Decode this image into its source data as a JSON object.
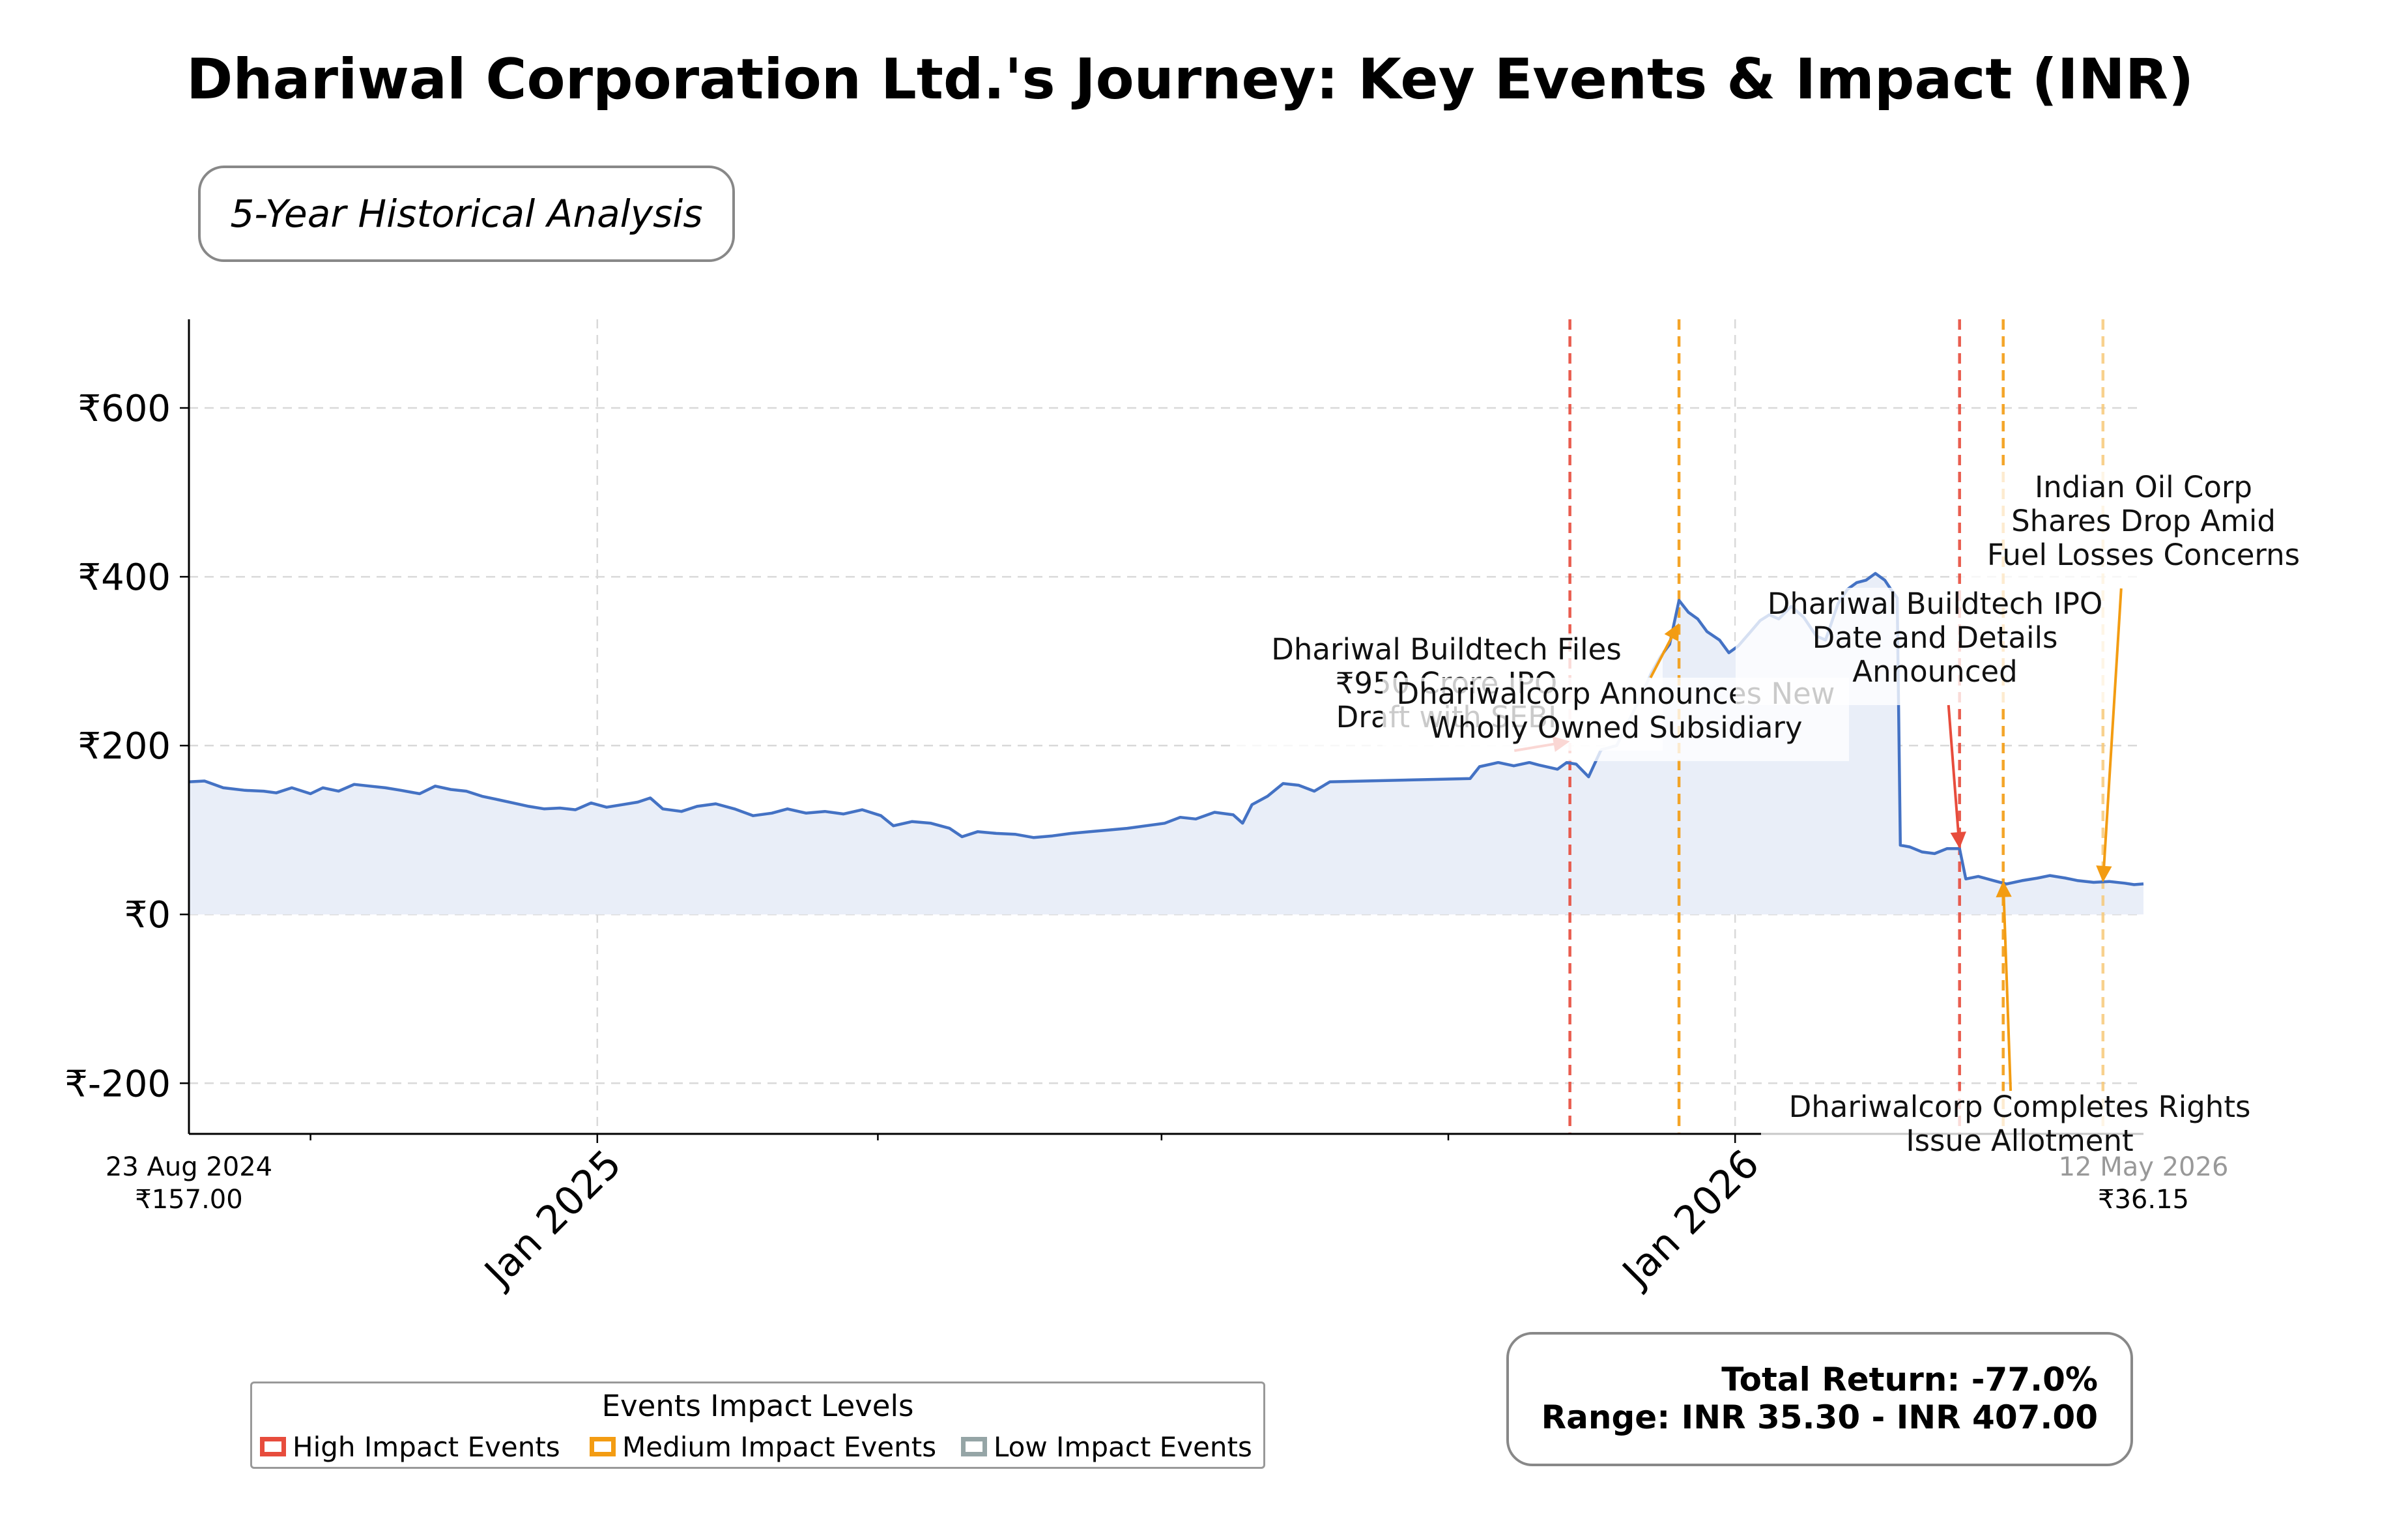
{
  "title": "Dhariwal Corporation Ltd.'s Journey: Key Events & Impact (INR)",
  "subtitle": "5-Year Historical Analysis",
  "colors": {
    "line": "#4472c4",
    "fill": "#e9eef8",
    "high": "#e74c3c",
    "medium": "#f39c12",
    "low": "#95a5a6",
    "grid": "#d9d9d9"
  },
  "legend": {
    "title": "Events Impact Levels",
    "items": [
      {
        "label": "High Impact Events",
        "color": "#e74c3c"
      },
      {
        "label": "Medium Impact Events",
        "color": "#f39c12"
      },
      {
        "label": "Low Impact Events",
        "color": "#95a5a6"
      }
    ]
  },
  "stats": {
    "total_return": "Total Return: -77.0%",
    "range": "Range: INR 35.30 - INR 407.00"
  },
  "chart_data": {
    "type": "line",
    "x_axis": "date",
    "xlim": [
      "2024-08-23",
      "2026-05-12"
    ],
    "ylim": [
      -260,
      705
    ],
    "y_ticks": [
      -200,
      0,
      200,
      400,
      600
    ],
    "y_tick_labels": [
      "₹-200",
      "₹0",
      "₹200",
      "₹400",
      "₹600"
    ],
    "x_tick_dates": [
      "2025-01-01",
      "2026-01-01"
    ],
    "x_tick_labels": [
      "Jan 2025",
      "Jan 2026"
    ],
    "x_minor_ticks": [
      "2024-10-01",
      "2025-04-01",
      "2025-07-01",
      "2025-10-01",
      "2026-04-01"
    ],
    "grid": true,
    "area_fill": true,
    "start_label": {
      "date": "23 Aug 2024",
      "price": "₹157.00"
    },
    "end_label": {
      "date": "12 May 2026",
      "price": "₹36.15"
    },
    "series": [
      {
        "points": [
          [
            "2024-08-23",
            157
          ],
          [
            "2024-08-28",
            158
          ],
          [
            "2024-09-03",
            150
          ],
          [
            "2024-09-10",
            147
          ],
          [
            "2024-09-16",
            146
          ],
          [
            "2024-09-20",
            144
          ],
          [
            "2024-09-25",
            150
          ],
          [
            "2024-10-01",
            143
          ],
          [
            "2024-10-05",
            150
          ],
          [
            "2024-10-10",
            146
          ],
          [
            "2024-10-15",
            154
          ],
          [
            "2024-10-20",
            152
          ],
          [
            "2024-10-25",
            150
          ],
          [
            "2024-10-30",
            147
          ],
          [
            "2024-11-05",
            143
          ],
          [
            "2024-11-10",
            152
          ],
          [
            "2024-11-15",
            148
          ],
          [
            "2024-11-20",
            146
          ],
          [
            "2024-11-25",
            140
          ],
          [
            "2024-11-30",
            136
          ],
          [
            "2024-12-05",
            132
          ],
          [
            "2024-12-10",
            128
          ],
          [
            "2024-12-15",
            125
          ],
          [
            "2024-12-20",
            126
          ],
          [
            "2024-12-25",
            124
          ],
          [
            "2024-12-30",
            132
          ],
          [
            "2025-01-04",
            127
          ],
          [
            "2025-01-09",
            130
          ],
          [
            "2025-01-14",
            133
          ],
          [
            "2025-01-18",
            138
          ],
          [
            "2025-01-22",
            125
          ],
          [
            "2025-01-28",
            122
          ],
          [
            "2025-02-02",
            128
          ],
          [
            "2025-02-08",
            131
          ],
          [
            "2025-02-14",
            125
          ],
          [
            "2025-02-20",
            117
          ],
          [
            "2025-02-26",
            120
          ],
          [
            "2025-03-03",
            125
          ],
          [
            "2025-03-09",
            120
          ],
          [
            "2025-03-15",
            122
          ],
          [
            "2025-03-21",
            119
          ],
          [
            "2025-03-27",
            124
          ],
          [
            "2025-04-02",
            117
          ],
          [
            "2025-04-06",
            105
          ],
          [
            "2025-04-12",
            110
          ],
          [
            "2025-04-18",
            108
          ],
          [
            "2025-04-24",
            102
          ],
          [
            "2025-04-28",
            92
          ],
          [
            "2025-05-03",
            98
          ],
          [
            "2025-05-09",
            96
          ],
          [
            "2025-05-15",
            95
          ],
          [
            "2025-05-21",
            91
          ],
          [
            "2025-05-27",
            93
          ],
          [
            "2025-06-02",
            96
          ],
          [
            "2025-06-08",
            98
          ],
          [
            "2025-06-14",
            100
          ],
          [
            "2025-06-20",
            102
          ],
          [
            "2025-06-26",
            105
          ],
          [
            "2025-07-02",
            108
          ],
          [
            "2025-07-07",
            115
          ],
          [
            "2025-07-12",
            113
          ],
          [
            "2025-07-18",
            121
          ],
          [
            "2025-07-24",
            118
          ],
          [
            "2025-07-27",
            108
          ],
          [
            "2025-07-30",
            130
          ],
          [
            "2025-08-04",
            140
          ],
          [
            "2025-08-09",
            155
          ],
          [
            "2025-08-14",
            153
          ],
          [
            "2025-08-19",
            146
          ],
          [
            "2025-08-24",
            157
          ],
          [
            "2025-10-08",
            161
          ],
          [
            "2025-10-11",
            175
          ],
          [
            "2025-10-17",
            180
          ],
          [
            "2025-10-22",
            176
          ],
          [
            "2025-10-27",
            180
          ],
          [
            "2025-10-30",
            177
          ],
          [
            "2025-11-05",
            172
          ],
          [
            "2025-11-08",
            180
          ],
          [
            "2025-11-11",
            178
          ],
          [
            "2025-11-15",
            163
          ],
          [
            "2025-11-19",
            195
          ],
          [
            "2025-11-24",
            200
          ],
          [
            "2025-11-28",
            230
          ],
          [
            "2025-12-02",
            260
          ],
          [
            "2025-12-05",
            285
          ],
          [
            "2025-12-08",
            305
          ],
          [
            "2025-12-11",
            320
          ],
          [
            "2025-12-14",
            372
          ],
          [
            "2025-12-17",
            358
          ],
          [
            "2025-12-20",
            350
          ],
          [
            "2025-12-23",
            335
          ],
          [
            "2025-12-27",
            325
          ],
          [
            "2025-12-30",
            310
          ],
          [
            "2026-01-02",
            318
          ],
          [
            "2026-01-06",
            335
          ],
          [
            "2026-01-09",
            348
          ],
          [
            "2026-01-12",
            355
          ],
          [
            "2026-01-15",
            350
          ],
          [
            "2026-01-19",
            365
          ],
          [
            "2026-01-23",
            352
          ],
          [
            "2026-01-27",
            330
          ],
          [
            "2026-01-30",
            325
          ],
          [
            "2026-02-03",
            368
          ],
          [
            "2026-02-06",
            385
          ],
          [
            "2026-02-09",
            393
          ],
          [
            "2026-02-12",
            396
          ],
          [
            "2026-02-15",
            404
          ],
          [
            "2026-02-18",
            396
          ],
          [
            "2026-02-20",
            385
          ],
          [
            "2026-02-22",
            375
          ],
          [
            "2026-02-23",
            82
          ],
          [
            "2026-02-26",
            80
          ],
          [
            "2026-03-02",
            74
          ],
          [
            "2026-03-06",
            72
          ],
          [
            "2026-03-10",
            78
          ],
          [
            "2026-03-14",
            78
          ],
          [
            "2026-03-16",
            42
          ],
          [
            "2026-03-20",
            45
          ],
          [
            "2026-03-25",
            40
          ],
          [
            "2026-03-29",
            36
          ],
          [
            "2026-04-03",
            40
          ],
          [
            "2026-04-08",
            43
          ],
          [
            "2026-04-12",
            46
          ],
          [
            "2026-04-17",
            43
          ],
          [
            "2026-04-21",
            40
          ],
          [
            "2026-04-26",
            38
          ],
          [
            "2026-05-01",
            39
          ],
          [
            "2026-05-06",
            37
          ],
          [
            "2026-05-09",
            35.3
          ],
          [
            "2026-05-12",
            36.15
          ]
        ]
      }
    ],
    "events": [
      {
        "date": "2025-11-09",
        "impact": "high",
        "price": 205,
        "label": [
          "Dhariwal Buildtech Files",
          "₹950 Crore IPO",
          "Draft with SEBI"
        ]
      },
      {
        "date": "2025-12-14",
        "impact": "medium",
        "price": 345,
        "label": [
          "Dhariwalcorp Announces New",
          "Wholly Owned Subsidiary"
        ]
      },
      {
        "date": "2026-03-14",
        "impact": "high",
        "price": 78,
        "label": [
          "Dhariwal Buildtech IPO",
          "Date and Details",
          "Announced"
        ]
      },
      {
        "date": "2026-03-28",
        "impact": "medium",
        "price": 40,
        "label": [
          "Dhariwalcorp Completes Rights",
          "Issue Allotment"
        ]
      },
      {
        "date": "2026-04-29",
        "impact": "medium_light",
        "price": 38,
        "label": [
          "Indian Oil Corp",
          "Shares Drop Amid",
          "Fuel Losses Concerns"
        ]
      }
    ]
  }
}
